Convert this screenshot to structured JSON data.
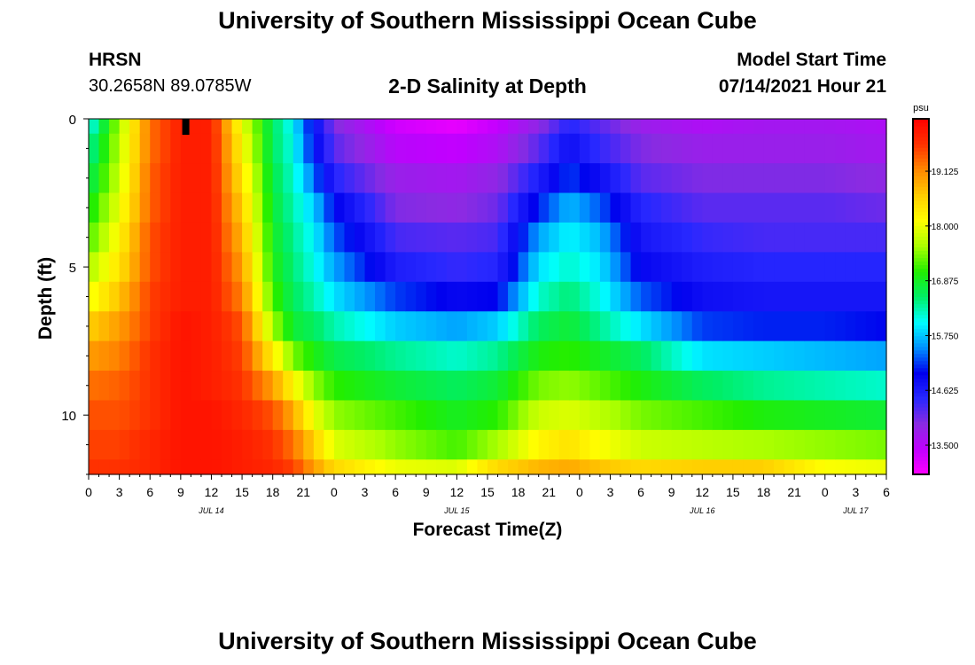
{
  "page": {
    "title_top": "University of Southern Mississippi Ocean Cube",
    "title_bottom": "University of Southern Mississippi Ocean Cube",
    "station": "HRSN",
    "coords": "30.2658N  89.0785W",
    "subtitle": "2-D Salinity at Depth",
    "model_start_label": "Model Start Time",
    "model_start_value": "07/14/2021 Hour 21"
  },
  "chart_data": {
    "type": "heatmap",
    "title": "2-D Salinity at Depth",
    "xlabel": "Forecast Time(Z)",
    "ylabel": "Depth (ft)",
    "x_start_hour": 0,
    "x_end_hour": 78,
    "x_tick_labels": [
      "0",
      "3",
      "6",
      "9",
      "12",
      "15",
      "18",
      "21",
      "0",
      "3",
      "6",
      "9",
      "12",
      "15",
      "18",
      "21",
      "0",
      "3",
      "6",
      "9",
      "12",
      "15",
      "18",
      "21",
      "0",
      "3",
      "6"
    ],
    "date_labels": [
      {
        "label": "JUL 14",
        "hour": 12
      },
      {
        "label": "JUL 15",
        "hour": 36
      },
      {
        "label": "JUL 16",
        "hour": 60
      },
      {
        "label": "JUL 17",
        "hour": 75
      }
    ],
    "ylim": [
      0,
      12
    ],
    "y_tick_labels": [
      "0",
      "5",
      "10"
    ],
    "y_ticks": [
      0,
      5,
      10
    ],
    "colorbar": {
      "unit": "psu",
      "range": [
        12.9,
        20.2
      ],
      "tick_values": [
        13.5,
        14.625,
        15.75,
        16.875,
        18.0,
        19.125
      ],
      "tick_labels": [
        "13.500",
        "14.625",
        "15.750",
        "16.875",
        "18.000",
        "19.125"
      ],
      "colors": [
        "#ff00ff",
        "#c000ff",
        "#8a2be2",
        "#2828ff",
        "#0000ee",
        "#0090ff",
        "#00ffff",
        "#00ee66",
        "#22ee00",
        "#aaff00",
        "#ffff00",
        "#ffcc00",
        "#ff8800",
        "#ff3300",
        "#ff0000"
      ]
    },
    "marker": {
      "hour": 9.5,
      "depth": 0
    },
    "depth_levels": [
      0,
      1,
      2,
      3,
      4,
      5,
      6,
      7,
      8,
      9,
      10,
      11,
      12
    ],
    "profiles": [
      {
        "hour": 0,
        "values": [
          16.0,
          16.3,
          16.6,
          16.9,
          17.2,
          17.6,
          18.0,
          18.6,
          19.0,
          19.3,
          19.5,
          19.6,
          19.7
        ]
      },
      {
        "hour": 3,
        "values": [
          17.6,
          17.7,
          17.8,
          18.0,
          18.2,
          18.4,
          18.7,
          19.0,
          19.2,
          19.4,
          19.5,
          19.6,
          19.7
        ]
      },
      {
        "hour": 6,
        "values": [
          19.3,
          19.3,
          19.4,
          19.4,
          19.5,
          19.5,
          19.6,
          19.6,
          19.7,
          19.7,
          19.7,
          19.8,
          19.8
        ]
      },
      {
        "hour": 9,
        "values": [
          19.9,
          19.9,
          19.9,
          19.9,
          19.9,
          19.9,
          19.9,
          20.0,
          20.0,
          20.0,
          20.0,
          20.0,
          20.0
        ]
      },
      {
        "hour": 12,
        "values": [
          19.9,
          19.9,
          19.9,
          19.9,
          19.9,
          19.9,
          19.9,
          19.9,
          19.9,
          19.9,
          20.0,
          20.0,
          20.0
        ]
      },
      {
        "hour": 15,
        "values": [
          18.0,
          18.2,
          18.4,
          18.6,
          18.8,
          19.0,
          19.2,
          19.5,
          19.6,
          19.7,
          19.8,
          19.9,
          19.9
        ]
      },
      {
        "hour": 18,
        "values": [
          16.6,
          16.6,
          16.7,
          16.8,
          16.9,
          17.0,
          17.2,
          17.6,
          18.3,
          19.0,
          19.5,
          19.7,
          19.8
        ]
      },
      {
        "hour": 20,
        "values": [
          16.0,
          16.1,
          16.2,
          16.3,
          16.4,
          16.5,
          16.6,
          16.8,
          17.4,
          18.2,
          18.9,
          19.3,
          19.6
        ]
      },
      {
        "hour": 22,
        "values": [
          14.9,
          15.0,
          15.4,
          15.8,
          16.0,
          16.1,
          16.3,
          16.6,
          17.0,
          17.5,
          18.0,
          18.6,
          19.0
        ]
      },
      {
        "hour": 24,
        "values": [
          14.0,
          14.2,
          14.5,
          15.0,
          15.3,
          15.6,
          15.9,
          16.3,
          16.7,
          17.1,
          17.5,
          17.9,
          18.5
        ]
      },
      {
        "hour": 30,
        "values": [
          13.3,
          13.5,
          13.8,
          14.0,
          14.3,
          14.6,
          15.2,
          15.8,
          16.4,
          16.8,
          17.2,
          17.5,
          18.0
        ]
      },
      {
        "hour": 36,
        "values": [
          13.1,
          13.4,
          13.7,
          13.9,
          14.2,
          14.4,
          14.9,
          15.6,
          16.2,
          16.6,
          16.9,
          17.2,
          17.9
        ]
      },
      {
        "hour": 40,
        "values": [
          13.4,
          13.6,
          13.9,
          14.1,
          14.3,
          14.5,
          15.0,
          15.8,
          16.4,
          16.8,
          17.1,
          17.6,
          18.5
        ]
      },
      {
        "hour": 44,
        "values": [
          13.9,
          14.2,
          14.6,
          15.1,
          15.6,
          15.9,
          16.2,
          16.6,
          17.0,
          17.4,
          17.8,
          18.2,
          18.8
        ]
      },
      {
        "hour": 47,
        "values": [
          14.5,
          14.8,
          15.2,
          15.7,
          16.0,
          16.2,
          16.5,
          16.8,
          17.1,
          17.5,
          17.9,
          18.4,
          18.9
        ]
      },
      {
        "hour": 50,
        "values": [
          14.2,
          14.4,
          14.8,
          15.3,
          15.7,
          15.9,
          16.1,
          16.4,
          16.9,
          17.3,
          17.7,
          18.1,
          18.7
        ]
      },
      {
        "hour": 54,
        "values": [
          13.8,
          14.0,
          14.2,
          14.5,
          14.7,
          14.9,
          15.3,
          15.9,
          16.6,
          17.0,
          17.4,
          17.8,
          18.5
        ]
      },
      {
        "hour": 60,
        "values": [
          13.6,
          13.8,
          14.0,
          14.2,
          14.4,
          14.6,
          14.8,
          15.2,
          15.9,
          16.6,
          17.2,
          17.7,
          18.6
        ]
      },
      {
        "hour": 66,
        "values": [
          13.7,
          13.8,
          14.0,
          14.2,
          14.3,
          14.5,
          14.7,
          15.1,
          15.8,
          16.4,
          17.0,
          17.6,
          18.6
        ]
      },
      {
        "hour": 72,
        "values": [
          13.7,
          13.8,
          14.0,
          14.2,
          14.3,
          14.5,
          14.7,
          15.1,
          15.7,
          16.3,
          16.9,
          17.5,
          18.1
        ]
      },
      {
        "hour": 78,
        "values": [
          13.6,
          13.7,
          13.9,
          14.1,
          14.3,
          14.5,
          14.7,
          15.0,
          15.6,
          16.2,
          16.8,
          17.4,
          18.0
        ]
      }
    ]
  }
}
